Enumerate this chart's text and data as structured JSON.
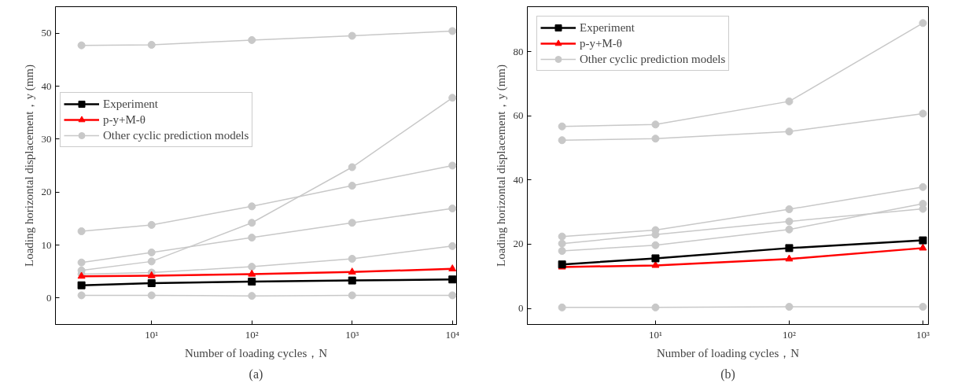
{
  "chart_data": [
    {
      "type": "line",
      "x": [
        2,
        10,
        100,
        1000,
        10000
      ],
      "log": "x",
      "xlim": [
        1.1,
        11000
      ],
      "ylim": [
        -5,
        55
      ],
      "xticks": [
        {
          "value": 10,
          "label": "10¹"
        },
        {
          "value": 100,
          "label": "10²"
        },
        {
          "value": 1000,
          "label": "10³"
        },
        {
          "value": 10000,
          "label": "10⁴"
        }
      ],
      "yticks": [
        0,
        10,
        20,
        30,
        40,
        50
      ],
      "xlabel": "Number of loading cycles，N",
      "ylabel": "Loading horizontal displacement，y (mm)",
      "legend": "top left",
      "grid": false,
      "annotations": [
        "(a)"
      ],
      "series": [
        {
          "name": "Experiment",
          "color": "#000000",
          "marker": "square",
          "values": [
            2.4,
            2.8,
            3.1,
            3.3,
            3.5
          ]
        },
        {
          "name": "p-y+M-θ",
          "color": "#ff0000",
          "marker": "triangle",
          "values": [
            4.1,
            4.2,
            4.5,
            4.9,
            5.5
          ]
        },
        {
          "name": "Other cyclic prediction models",
          "color": "#c8c8c8",
          "marker": "circle",
          "values": [
            47.7,
            47.8,
            48.7,
            49.5,
            50.4
          ]
        },
        {
          "color": "#c8c8c8",
          "marker": "circle",
          "values": [
            5.2,
            6.9,
            14.2,
            24.7,
            37.8
          ]
        },
        {
          "color": "#c8c8c8",
          "marker": "circle",
          "values": [
            12.6,
            13.8,
            17.3,
            21.2,
            25.0
          ]
        },
        {
          "color": "#c8c8c8",
          "marker": "circle",
          "values": [
            6.7,
            8.6,
            11.4,
            14.2,
            16.9
          ]
        },
        {
          "color": "#c8c8c8",
          "marker": "circle",
          "values": [
            4.5,
            4.8,
            5.9,
            7.4,
            9.8
          ]
        },
        {
          "color": "#c8c8c8",
          "marker": "circle",
          "values": [
            0.5,
            0.5,
            0.4,
            0.5,
            0.5
          ]
        }
      ]
    },
    {
      "type": "line",
      "x": [
        2,
        10,
        100,
        1000
      ],
      "log": "x",
      "xlim": [
        1.1,
        1100
      ],
      "ylim": [
        -5,
        94
      ],
      "xticks": [
        {
          "value": 10,
          "label": "10¹"
        },
        {
          "value": 100,
          "label": "10²"
        },
        {
          "value": 1000,
          "label": "10³"
        }
      ],
      "yticks": [
        0,
        20,
        40,
        60,
        80
      ],
      "xlabel": "Number of loading cycles，N",
      "ylabel": "Loading horizontal displacement，y (mm)",
      "legend": "top left",
      "grid": false,
      "annotations": [
        "(b)"
      ],
      "series": [
        {
          "name": "Experiment",
          "color": "#000000",
          "marker": "square",
          "values": [
            13.7,
            15.6,
            18.8,
            21.2
          ]
        },
        {
          "name": "p-y+M-θ",
          "color": "#ff0000",
          "marker": "triangle",
          "values": [
            12.9,
            13.4,
            15.4,
            18.8
          ]
        },
        {
          "name": "Other cyclic prediction models",
          "color": "#c8c8c8",
          "marker": "circle",
          "values": [
            56.7,
            57.3,
            64.5,
            88.9
          ]
        },
        {
          "color": "#c8c8c8",
          "marker": "circle",
          "values": [
            52.4,
            52.9,
            55.1,
            60.7
          ]
        },
        {
          "color": "#c8c8c8",
          "marker": "circle",
          "values": [
            22.4,
            24.4,
            30.9,
            37.8
          ]
        },
        {
          "color": "#c8c8c8",
          "marker": "circle",
          "values": [
            20.2,
            23.0,
            27.1,
            31.0
          ]
        },
        {
          "color": "#c8c8c8",
          "marker": "circle",
          "values": [
            17.9,
            19.7,
            24.6,
            32.6
          ]
        },
        {
          "color": "#c8c8c8",
          "marker": "circle",
          "values": [
            0.3,
            0.3,
            0.5,
            0.5
          ]
        }
      ]
    }
  ]
}
